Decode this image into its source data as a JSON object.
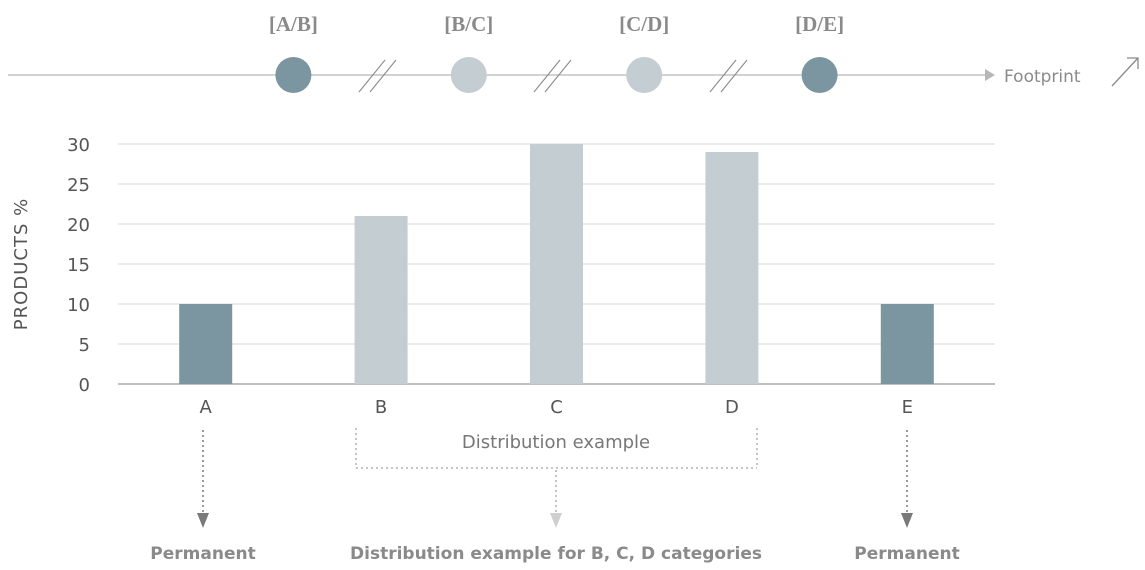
{
  "timeline": {
    "range_labels": [
      "[A/B]",
      "[B/C]",
      "[C/D]",
      "[D/E]"
    ],
    "axis_label": "Footprint",
    "arrow_icon": "diagonal-arrow-icon",
    "dot_kinds": [
      "dark",
      "light",
      "light",
      "dark"
    ]
  },
  "colors": {
    "dark": "#7b96a0",
    "light": "#c3cdd2",
    "axis": "#b7b7b7",
    "text": "#555555",
    "annotation": "#8a8a8a"
  },
  "chart_data": {
    "type": "bar",
    "ylabel": "PRODUCTS %",
    "ylim": [
      0,
      30
    ],
    "yticks": [
      0,
      5,
      10,
      15,
      20,
      25,
      30
    ],
    "categories": [
      "A",
      "B",
      "C",
      "D",
      "E"
    ],
    "values": [
      10,
      21,
      30,
      29,
      10
    ],
    "bar_kinds": [
      "dark",
      "light",
      "light",
      "light",
      "dark"
    ],
    "grid": true
  },
  "annotations": {
    "bracket_label": "Distribution example",
    "bottom_labels": [
      "Permanent",
      "Distribution example for B, C, D categories",
      "Permanent"
    ]
  }
}
